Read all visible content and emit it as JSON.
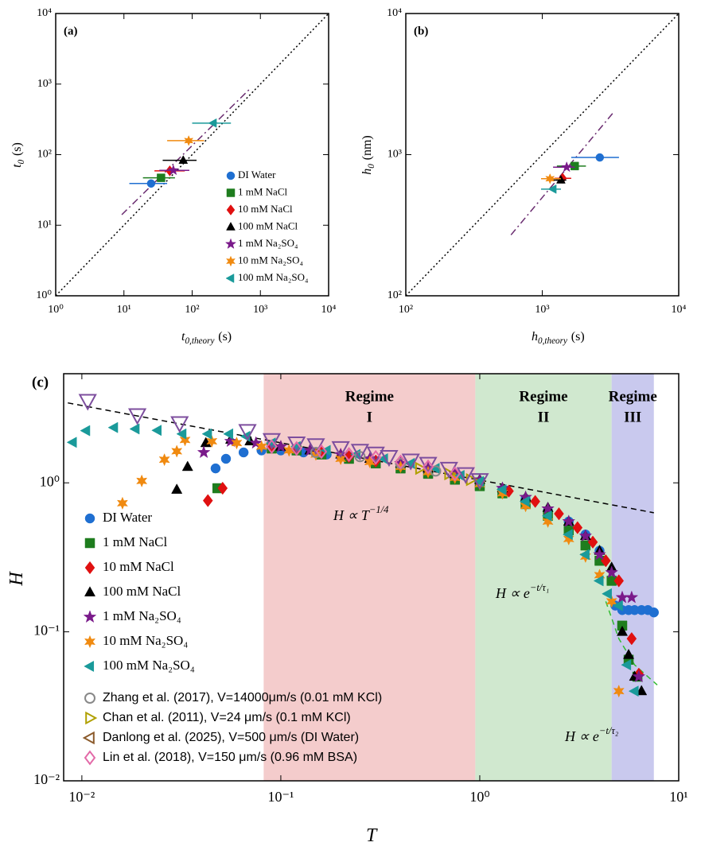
{
  "chart_data": [
    {
      "type": "scatter",
      "panel_label": "(a)",
      "xlabel": {
        "base": "t",
        "sub": "0,theory",
        "unit": "(s)"
      },
      "ylabel": {
        "base": "t",
        "sub": "0",
        "unit": "(s)"
      },
      "log_x": true,
      "log_y": true,
      "xlim": [
        1,
        10000
      ],
      "ylim": [
        1,
        10000
      ],
      "xticks": [
        {
          "value": 1,
          "label": "10⁰"
        },
        {
          "value": 10,
          "label": "10¹"
        },
        {
          "value": 100,
          "label": "10²"
        },
        {
          "value": 1000,
          "label": "10³"
        },
        {
          "value": 10000,
          "label": "10⁴"
        }
      ],
      "yticks": [
        {
          "value": 1,
          "label": "10⁰"
        },
        {
          "value": 10,
          "label": "10¹"
        },
        {
          "value": 100,
          "label": "10²"
        },
        {
          "value": 1000,
          "label": "10³"
        },
        {
          "value": 10000,
          "label": "10⁴"
        }
      ],
      "legend": "lower right",
      "lines": [
        {
          "x": [
            1,
            10000
          ],
          "y": [
            1,
            10000
          ],
          "color": "#000000",
          "dash": "dotted"
        },
        {
          "x": [
            9.3,
            680
          ],
          "y": [
            14.1,
            830
          ],
          "color": "#6a2c70",
          "dash": "dashdot"
        }
      ],
      "series": [
        {
          "name": "DI Water",
          "color": "#1f6fd1",
          "marker": "circle",
          "x": [
            25
          ],
          "y": [
            39
          ],
          "xerr": [
            [
              12,
              43
            ]
          ]
        },
        {
          "name": "1 mM NaCl",
          "color": "#1e7d1e",
          "marker": "square",
          "x": [
            35
          ],
          "y": [
            47
          ],
          "xerr": [
            [
              19,
              56
            ]
          ]
        },
        {
          "name": "10 mM NaCl",
          "color": "#e01010",
          "marker": "diamond",
          "x": [
            47
          ],
          "y": [
            59
          ],
          "xerr": [
            [
              28,
              78
            ]
          ]
        },
        {
          "name": "100 mM NaCl",
          "color": "#000000",
          "marker": "triangle-up",
          "x": [
            74
          ],
          "y": [
            83
          ],
          "xerr": [
            [
              37,
              116
            ]
          ]
        },
        {
          "name": "1 mM Na₂SO₄",
          "color": "#7a1a8a",
          "marker": "star",
          "x": [
            53
          ],
          "y": [
            60
          ],
          "xerr": [
            [
              33,
              91
            ]
          ]
        },
        {
          "name": "10 mM Na₂SO₄",
          "color": "#f08a10",
          "marker": "hexagram",
          "x": [
            89
          ],
          "y": [
            158
          ],
          "xerr": [
            [
              43,
              150
            ]
          ]
        },
        {
          "name": "100 mM Na₂SO₄",
          "color": "#1a9a9a",
          "marker": "triangle-left",
          "x": [
            204
          ],
          "y": [
            280
          ],
          "xerr": [
            [
              100,
              370
            ]
          ]
        }
      ]
    },
    {
      "type": "scatter",
      "panel_label": "(b)",
      "xlabel": {
        "base": "h",
        "sub": "0,theory",
        "unit": "(s)"
      },
      "ylabel": {
        "base": "h",
        "sub": "0",
        "unit": "(nm)"
      },
      "log_x": true,
      "log_y": true,
      "xlim": [
        100,
        10000
      ],
      "ylim": [
        100,
        10000
      ],
      "xticks": [
        {
          "value": 100,
          "label": "10²"
        },
        {
          "value": 1000,
          "label": "10³"
        },
        {
          "value": 10000,
          "label": "10⁴"
        }
      ],
      "yticks": [
        {
          "value": 100,
          "label": "10²"
        },
        {
          "value": 1000,
          "label": "10³"
        },
        {
          "value": 10000,
          "label": "10⁴"
        }
      ],
      "lines": [
        {
          "x": [
            100,
            10000
          ],
          "y": [
            100,
            10000
          ],
          "color": "#000000",
          "dash": "dotted"
        },
        {
          "x": [
            590,
            3380
          ],
          "y": [
            270,
            2030
          ],
          "color": "#6a2c70",
          "dash": "dashdot"
        }
      ],
      "series": [
        {
          "color": "#1f6fd1",
          "marker": "circle",
          "x": [
            2640
          ],
          "y": [
            955
          ],
          "xerr": [
            [
              1630,
              3650
            ]
          ]
        },
        {
          "color": "#1e7d1e",
          "marker": "square",
          "x": [
            1730
          ],
          "y": [
            830
          ],
          "xerr": [
            [
              1280,
              2090
            ]
          ]
        },
        {
          "color": "#e01010",
          "marker": "diamond",
          "x": [
            1410
          ],
          "y": [
            680
          ],
          "xerr": [
            [
              1230,
              1630
            ]
          ]
        },
        {
          "color": "#000000",
          "marker": "triangle-up",
          "x": [
            1370
          ],
          "y": [
            660
          ],
          "xerr": [
            [
              1130,
              1500
            ]
          ]
        },
        {
          "color": "#7a1a8a",
          "marker": "star",
          "x": [
            1510
          ],
          "y": [
            815
          ],
          "xerr": [
            [
              1200,
              1730
            ]
          ]
        },
        {
          "color": "#f08a10",
          "marker": "hexagram",
          "x": [
            1140
          ],
          "y": [
            675
          ],
          "xerr": [
            [
              980,
              1370
            ]
          ]
        },
        {
          "color": "#1a9a9a",
          "marker": "triangle-left",
          "x": [
            1200
          ],
          "y": [
            570
          ],
          "xerr": [
            [
              980,
              1370
            ]
          ]
        }
      ]
    },
    {
      "type": "scatter",
      "panel_label": "(c)",
      "xlabel": {
        "base": "T"
      },
      "ylabel": {
        "base": "H"
      },
      "log_x": true,
      "log_y": true,
      "xlim": [
        0.0081,
        10
      ],
      "ylim": [
        0.01,
        5.4
      ],
      "xticks": [
        {
          "value": 0.01,
          "label": "10⁻²"
        },
        {
          "value": 0.1,
          "label": "10⁻¹"
        },
        {
          "value": 1,
          "label": "10⁰"
        },
        {
          "value": 10,
          "label": "10¹"
        }
      ],
      "yticks": [
        {
          "value": 0.01,
          "label": "10⁻²"
        },
        {
          "value": 0.1,
          "label": "10⁻¹"
        },
        {
          "value": 1,
          "label": "10⁰"
        }
      ],
      "legend": "lower left",
      "regions": [
        {
          "range": [
            0.082,
            0.95
          ],
          "color": "#f4cccc",
          "label": [
            "Regime",
            "I"
          ]
        },
        {
          "range": [
            0.95,
            4.6
          ],
          "color": "#d0e8cf",
          "label": [
            "Regime",
            "II"
          ]
        },
        {
          "range": [
            4.6,
            7.5
          ],
          "color": "#c9c9ee",
          "label": [
            "Regime",
            "III"
          ]
        }
      ],
      "annotations": [
        {
          "base": "H ∝ T",
          "sup": "−1/4"
        },
        {
          "base": "H ∝ e",
          "sup": "−t/τ₁"
        },
        {
          "base": "H ∝ e",
          "sup": "−t/τ₂"
        }
      ],
      "lines": [
        {
          "x": [
            0.0085,
            7.5
          ],
          "y": [
            3.44,
            0.63
          ],
          "color": "#000000",
          "dash": "dashed"
        },
        {
          "x": [
            4.3,
            5.0,
            6.0,
            7.8
          ],
          "y": [
            0.16,
            0.09,
            0.06,
            0.044
          ],
          "color": "#33bb33",
          "dash": "dashed"
        }
      ],
      "series": [
        {
          "name": "DI Water",
          "color": "#1f6fd1",
          "marker": "circle",
          "x": [
            0.047,
            0.053,
            0.065,
            0.08,
            0.1,
            0.13,
            0.17,
            0.22,
            0.3,
            0.4,
            0.55,
            0.75,
            1.0,
            1.3,
            1.7,
            2.2,
            2.8,
            3.4,
            4.0,
            4.8,
            5.2,
            5.6,
            6.0,
            6.5,
            7.0,
            7.5
          ],
          "y": [
            1.25,
            1.45,
            1.6,
            1.65,
            1.65,
            1.6,
            1.55,
            1.5,
            1.4,
            1.3,
            1.2,
            1.1,
            1.0,
            0.9,
            0.78,
            0.65,
            0.55,
            0.45,
            0.35,
            0.15,
            0.14,
            0.14,
            0.14,
            0.14,
            0.14,
            0.135
          ]
        },
        {
          "name": "1 mM NaCl",
          "color": "#1e7d1e",
          "marker": "square",
          "x": [
            0.048,
            0.09,
            0.12,
            0.16,
            0.22,
            0.3,
            0.4,
            0.55,
            0.75,
            1.0,
            1.3,
            1.7,
            2.2,
            2.8,
            3.4,
            4.0,
            4.6,
            5.2,
            5.6,
            6.2
          ],
          "y": [
            0.92,
            1.7,
            1.65,
            1.55,
            1.45,
            1.35,
            1.25,
            1.15,
            1.05,
            0.95,
            0.85,
            0.72,
            0.6,
            0.48,
            0.38,
            0.3,
            0.22,
            0.11,
            0.065,
            0.05
          ]
        },
        {
          "name": "10 mM NaCl",
          "color": "#e01010",
          "marker": "diamond",
          "x": [
            0.043,
            0.051,
            0.09,
            0.12,
            0.16,
            0.22,
            0.3,
            0.4,
            0.55,
            0.75,
            1.0,
            1.4,
            1.9,
            2.5,
            3.1,
            3.7,
            4.3,
            5.0,
            5.8,
            6.3
          ],
          "y": [
            0.76,
            0.92,
            1.75,
            1.7,
            1.6,
            1.5,
            1.4,
            1.3,
            1.2,
            1.1,
            1.0,
            0.88,
            0.75,
            0.62,
            0.5,
            0.4,
            0.3,
            0.22,
            0.09,
            0.052
          ]
        },
        {
          "name": "100 mM NaCl",
          "color": "#000000",
          "marker": "triangle-up",
          "x": [
            0.03,
            0.034,
            0.042,
            0.056,
            0.07,
            0.1,
            0.14,
            0.2,
            0.28,
            0.4,
            0.55,
            0.75,
            1.0,
            1.3,
            1.7,
            2.2,
            2.8,
            3.4,
            4.0,
            4.6,
            5.2,
            5.6,
            6.0,
            6.5
          ],
          "y": [
            0.9,
            1.28,
            1.85,
            1.95,
            1.9,
            1.75,
            1.65,
            1.55,
            1.45,
            1.35,
            1.25,
            1.15,
            1.05,
            0.92,
            0.8,
            0.68,
            0.55,
            0.44,
            0.35,
            0.27,
            0.1,
            0.07,
            0.05,
            0.04
          ]
        },
        {
          "name": "1 mM Na₂SO₄",
          "color": "#7a1a8a",
          "marker": "star",
          "x": [
            0.041,
            0.056,
            0.075,
            0.1,
            0.14,
            0.2,
            0.28,
            0.4,
            0.55,
            0.75,
            1.0,
            1.3,
            1.7,
            2.2,
            2.8,
            3.4,
            4.0,
            4.6,
            5.2,
            5.8,
            6.3
          ],
          "y": [
            1.6,
            1.9,
            1.85,
            1.75,
            1.65,
            1.55,
            1.45,
            1.35,
            1.25,
            1.15,
            1.05,
            0.92,
            0.8,
            0.67,
            0.55,
            0.44,
            0.33,
            0.25,
            0.17,
            0.17,
            0.05
          ]
        },
        {
          "name": "10 mM Na₂SO₄",
          "color": "#f08a10",
          "marker": "hexagram",
          "x": [
            0.016,
            0.02,
            0.026,
            0.03,
            0.033,
            0.045,
            0.06,
            0.08,
            0.11,
            0.15,
            0.2,
            0.28,
            0.4,
            0.55,
            0.75,
            1.0,
            1.3,
            1.7,
            2.2,
            2.8,
            3.4,
            4.0,
            4.6,
            5.0
          ],
          "y": [
            0.73,
            1.03,
            1.43,
            1.63,
            1.94,
            1.9,
            1.85,
            1.75,
            1.65,
            1.55,
            1.45,
            1.38,
            1.28,
            1.18,
            1.08,
            0.98,
            0.85,
            0.7,
            0.55,
            0.42,
            0.32,
            0.24,
            0.16,
            0.04
          ]
        },
        {
          "name": "100 mM Na₂SO₄",
          "color": "#1a9a9a",
          "marker": "triangle-left",
          "x": [
            0.009,
            0.0105,
            0.0145,
            0.0186,
            0.024,
            0.032,
            0.043,
            0.055,
            0.067,
            0.09,
            0.12,
            0.17,
            0.24,
            0.33,
            0.45,
            0.6,
            0.8,
            1.0,
            1.3,
            1.7,
            2.2,
            2.8,
            3.4,
            4.0,
            4.4,
            5.0,
            5.5,
            6.0
          ],
          "y": [
            1.87,
            2.24,
            2.35,
            2.3,
            2.25,
            2.13,
            2.13,
            2.13,
            2.05,
            1.85,
            1.75,
            1.65,
            1.55,
            1.45,
            1.35,
            1.25,
            1.12,
            1.02,
            0.9,
            0.75,
            0.6,
            0.45,
            0.33,
            0.22,
            0.18,
            0.15,
            0.06,
            0.04
          ]
        },
        {
          "name": "Zhang et al. (2017), V=14000μm/s (0.01 mM KCl)",
          "color": "#888888",
          "marker": "circle",
          "open": true,
          "x": [
            0.15,
            0.25,
            0.4,
            0.6
          ],
          "y": [
            1.6,
            1.5,
            1.35,
            1.2
          ]
        },
        {
          "name": "Chan et al. (2011), V=24 μm/s (0.1 mM KCl)",
          "color": "#b0a000",
          "marker": "triangle-right",
          "open": true,
          "x": [
            0.5,
            0.7,
            0.9
          ],
          "y": [
            1.25,
            1.15,
            1.05
          ]
        },
        {
          "name": "Danlong et al. (2025), V=500 μm/s (DI Water)",
          "color": "#7d4e9e",
          "marker": "triangle-down",
          "open": true,
          "big": true,
          "legend_color": "#8b5a2b",
          "legend_marker": "triangle-left",
          "x": [
            0.0107,
            0.019,
            0.031,
            0.068,
            0.09,
            0.12,
            0.15,
            0.2,
            0.25,
            0.3,
            0.35,
            0.45,
            0.55,
            0.7,
            0.85,
            1.0
          ],
          "y": [
            3.57,
            2.86,
            2.53,
            2.24,
            1.95,
            1.85,
            1.8,
            1.72,
            1.65,
            1.58,
            1.5,
            1.42,
            1.35,
            1.25,
            1.15,
            1.05
          ]
        },
        {
          "name": "Lin et al. (2018), V=150 μm/s (0.96 mM BSA)",
          "color": "#e36aa8",
          "marker": "diamond",
          "open": true,
          "x": [
            0.09,
            0.12,
            0.16,
            0.22,
            0.3,
            0.4,
            0.55,
            0.75
          ],
          "y": [
            1.75,
            1.7,
            1.62,
            1.55,
            1.48,
            1.38,
            1.28,
            1.15
          ]
        }
      ]
    }
  ]
}
